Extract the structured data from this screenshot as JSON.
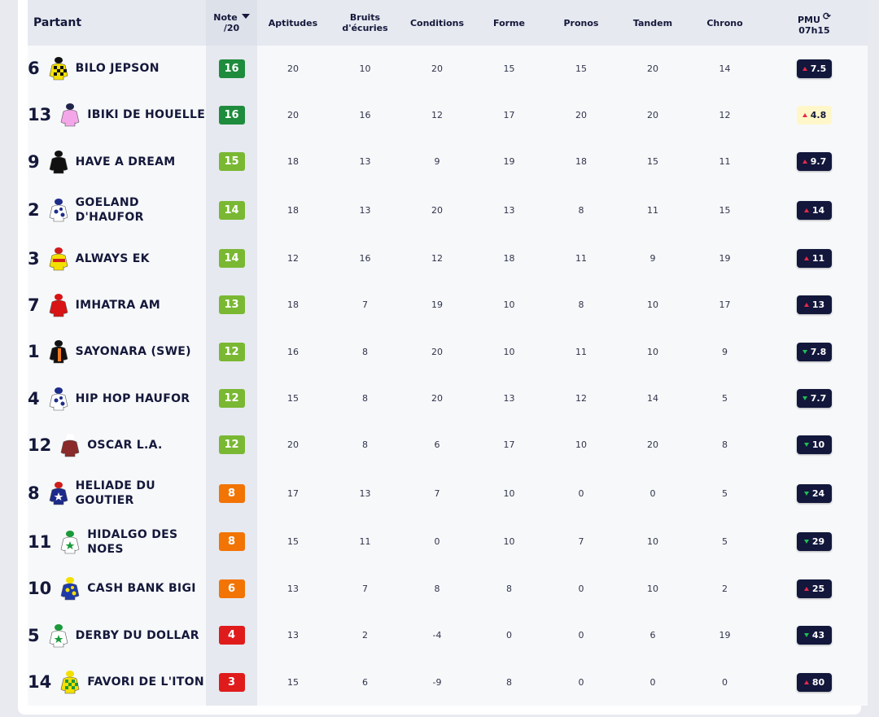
{
  "header": {
    "partant": "Partant",
    "note_line1": "Note",
    "note_line2": "/20",
    "aptitudes": "Aptitudes",
    "bruits_line1": "Bruits",
    "bruits_line2": "d'écuries",
    "conditions": "Conditions",
    "forme": "Forme",
    "pronos": "Pronos",
    "tandem": "Tandem",
    "chrono": "Chrono",
    "pmu_line1": "PMU",
    "pmu_line2": "07h15"
  },
  "colors": {
    "note_green_dark": "#1e8b3d",
    "note_green": "#7ab833",
    "note_orange": "#f27405",
    "note_red": "#e01b1b",
    "pmu_bg": "#12173b",
    "pmu_highlight": "#fff7c9"
  },
  "rows": [
    {
      "num": "6",
      "name": "BILO JEPSON",
      "note": "16",
      "aptitudes": "20",
      "bruits": "10",
      "conditions": "20",
      "forme": "15",
      "pronos": "15",
      "tandem": "20",
      "chrono": "14",
      "pmu": "7.5"
    },
    {
      "num": "13",
      "name": "IBIKI DE HOUELLE",
      "note": "16",
      "aptitudes": "20",
      "bruits": "16",
      "conditions": "12",
      "forme": "17",
      "pronos": "20",
      "tandem": "20",
      "chrono": "12",
      "pmu": "4.8"
    },
    {
      "num": "9",
      "name": "HAVE A DREAM",
      "note": "15",
      "aptitudes": "18",
      "bruits": "13",
      "conditions": "9",
      "forme": "19",
      "pronos": "18",
      "tandem": "15",
      "chrono": "11",
      "pmu": "9.7"
    },
    {
      "num": "2",
      "name": "GOELAND D'HAUFOR",
      "note": "14",
      "aptitudes": "18",
      "bruits": "13",
      "conditions": "20",
      "forme": "13",
      "pronos": "8",
      "tandem": "11",
      "chrono": "15",
      "pmu": "14"
    },
    {
      "num": "3",
      "name": "ALWAYS EK",
      "note": "14",
      "aptitudes": "12",
      "bruits": "16",
      "conditions": "12",
      "forme": "18",
      "pronos": "11",
      "tandem": "9",
      "chrono": "19",
      "pmu": "11"
    },
    {
      "num": "7",
      "name": "IMHATRA AM",
      "note": "13",
      "aptitudes": "18",
      "bruits": "7",
      "conditions": "19",
      "forme": "10",
      "pronos": "8",
      "tandem": "10",
      "chrono": "17",
      "pmu": "13"
    },
    {
      "num": "1",
      "name": "SAYONARA (SWE)",
      "note": "12",
      "aptitudes": "16",
      "bruits": "8",
      "conditions": "20",
      "forme": "10",
      "pronos": "11",
      "tandem": "10",
      "chrono": "9",
      "pmu": "7.8"
    },
    {
      "num": "4",
      "name": "HIP HOP HAUFOR",
      "note": "12",
      "aptitudes": "15",
      "bruits": "8",
      "conditions": "20",
      "forme": "13",
      "pronos": "12",
      "tandem": "14",
      "chrono": "5",
      "pmu": "7.7"
    },
    {
      "num": "12",
      "name": "OSCAR L.A.",
      "note": "12",
      "aptitudes": "20",
      "bruits": "8",
      "conditions": "6",
      "forme": "17",
      "pronos": "10",
      "tandem": "20",
      "chrono": "8",
      "pmu": "10"
    },
    {
      "num": "8",
      "name": "HELIADE DU GOUTIER",
      "note": "8",
      "aptitudes": "17",
      "bruits": "13",
      "conditions": "7",
      "forme": "10",
      "pronos": "0",
      "tandem": "0",
      "chrono": "5",
      "pmu": "24"
    },
    {
      "num": "11",
      "name": "HIDALGO DES NOES",
      "note": "8",
      "aptitudes": "15",
      "bruits": "11",
      "conditions": "0",
      "forme": "10",
      "pronos": "7",
      "tandem": "10",
      "chrono": "5",
      "pmu": "29"
    },
    {
      "num": "10",
      "name": "CASH BANK BIGI",
      "note": "6",
      "aptitudes": "13",
      "bruits": "7",
      "conditions": "8",
      "forme": "8",
      "pronos": "0",
      "tandem": "10",
      "chrono": "2",
      "pmu": "25"
    },
    {
      "num": "5",
      "name": "DERBY DU DOLLAR",
      "note": "4",
      "aptitudes": "13",
      "bruits": "2",
      "conditions": "-4",
      "forme": "0",
      "pronos": "0",
      "tandem": "6",
      "chrono": "19",
      "pmu": "43"
    },
    {
      "num": "14",
      "name": "FAVORI DE L'ITON",
      "note": "3",
      "aptitudes": "15",
      "bruits": "6",
      "conditions": "-9",
      "forme": "8",
      "pronos": "0",
      "tandem": "0",
      "chrono": "0",
      "pmu": "80"
    }
  ]
}
